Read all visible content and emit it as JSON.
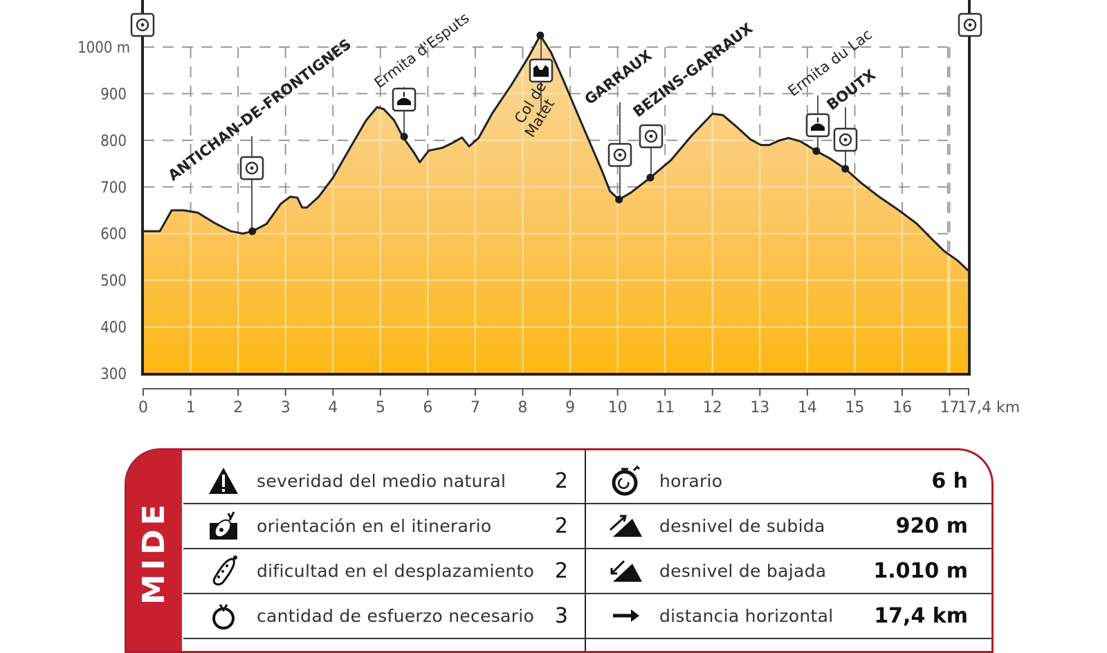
{
  "chart_data": {
    "type": "area",
    "title": "",
    "xlabel": "km",
    "ylabel": "m",
    "xlim": [
      0,
      17.4
    ],
    "ylim": [
      300,
      1000
    ],
    "grid": true,
    "y_ticks": [
      "1000 m",
      "900",
      "800",
      "700",
      "600",
      "500",
      "400",
      "300"
    ],
    "x_ticks": [
      "0",
      "1",
      "2",
      "3",
      "4",
      "5",
      "6",
      "7",
      "8",
      "9",
      "10",
      "11",
      "12",
      "13",
      "14",
      "15",
      "16",
      "17",
      "17,4 km"
    ],
    "profile": {
      "x_km": [
        0,
        0.35,
        0.6,
        0.85,
        1.15,
        1.5,
        1.85,
        2.1,
        2.3,
        2.6,
        2.9,
        3.1,
        3.25,
        3.35,
        3.45,
        3.7,
        4.0,
        4.35,
        4.7,
        4.93,
        5.07,
        5.29,
        5.48,
        5.7,
        5.83,
        6.02,
        6.31,
        6.53,
        6.72,
        6.87,
        7.07,
        7.36,
        7.77,
        8.13,
        8.37,
        8.6,
        8.86,
        9.15,
        9.45,
        9.67,
        9.84,
        10.03,
        10.28,
        10.69,
        11.13,
        11.56,
        12.0,
        12.22,
        12.51,
        12.8,
        13.02,
        13.2,
        13.39,
        13.6,
        13.85,
        14.19,
        14.48,
        14.8,
        15.13,
        15.5,
        15.93,
        16.3,
        16.6,
        16.88,
        17.17,
        17.4
      ],
      "elevation_m": [
        605,
        605,
        650,
        650,
        645,
        623,
        605,
        600,
        605,
        621,
        664,
        679,
        677,
        656,
        656,
        679,
        720,
        782,
        843,
        871,
        867,
        843,
        806,
        775,
        753,
        778,
        784,
        795,
        806,
        787,
        805,
        858,
        920,
        980,
        1025,
        988,
        928,
        858,
        787,
        735,
        691,
        673,
        688,
        720,
        758,
        810,
        857,
        854,
        829,
        802,
        790,
        790,
        799,
        805,
        798,
        777,
        761,
        739,
        709,
        680,
        650,
        622,
        591,
        563,
        542,
        520
      ]
    },
    "waypoints": [
      {
        "name": "ANTICHAN-DE-FRONTIGNES",
        "km": 2.3,
        "elevation_m": 605,
        "icon": "village-target-icon"
      },
      {
        "name": "Ermita d'Esputs",
        "km": 5.5,
        "elevation_m": 808,
        "icon": "chapel-icon"
      },
      {
        "name": "Col de Matet",
        "km": 8.37,
        "elevation_m": 1025,
        "icon": "mountain-pass-icon"
      },
      {
        "name": "GARRAUX",
        "km": 10.03,
        "elevation_m": 673,
        "icon": "village-target-icon"
      },
      {
        "name": "BEZINS-GARRAUX",
        "km": 10.69,
        "elevation_m": 720,
        "icon": "village-target-icon"
      },
      {
        "name": "Ermita du Lac",
        "km": 14.19,
        "elevation_m": 777,
        "icon": "chapel-icon"
      },
      {
        "name": "BOUTX",
        "km": 14.8,
        "elevation_m": 739,
        "icon": "village-target-icon"
      }
    ],
    "endpoints": [
      {
        "position": "start",
        "icon": "village-target-icon"
      },
      {
        "position": "end",
        "icon": "village-target-icon"
      }
    ],
    "colors": {
      "fill_top": "#f9d79c",
      "fill_bottom": "#fdb813",
      "line": "#222222",
      "grid": "#999999"
    }
  },
  "mide": {
    "tab_label": "MIDE",
    "accent_color": "#c8202f",
    "left": [
      {
        "icon": "warning-triangle-icon",
        "label": "severidad del medio natural",
        "value": "2"
      },
      {
        "icon": "orientation-compass-icon",
        "label": "orientación en el itinerario",
        "value": "2"
      },
      {
        "icon": "boot-sole-icon",
        "label": "dificultad en el desplazamiento",
        "value": "2"
      },
      {
        "icon": "effort-heart-icon",
        "label": "cantidad de esfuerzo necesario",
        "value": "3"
      }
    ],
    "right": [
      {
        "icon": "stopwatch-icon",
        "label": "horario",
        "value": "6 h"
      },
      {
        "icon": "ascent-slope-icon",
        "label": "desnivel de subida",
        "value": "920 m"
      },
      {
        "icon": "descent-slope-icon",
        "label": "desnivel de bajada",
        "value": "1.010 m"
      },
      {
        "icon": "distance-arrow-icon",
        "label": "distancia horizontal",
        "value": "17,4 km"
      }
    ]
  }
}
